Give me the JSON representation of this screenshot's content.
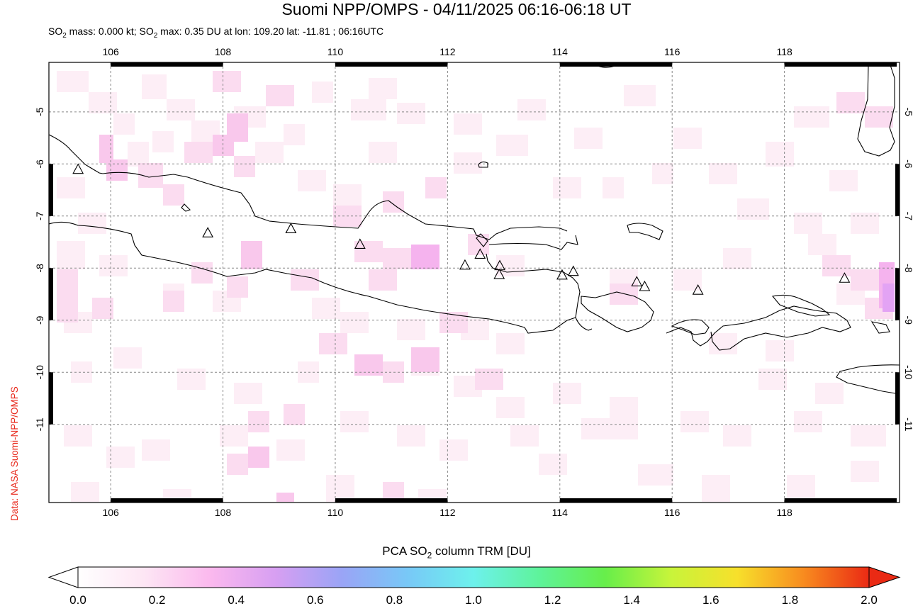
{
  "title": "Suomi NPP/OMPS - 04/11/2025 06:16-06:18 UT",
  "subtitle": {
    "prefix": "SO",
    "sub1": "2",
    "mid": " mass: 0.000 kt; SO",
    "sub2": "2",
    "suffix": " max: 0.35 DU at lon: 109.20 lat: -11.81 ; 06:16UTC"
  },
  "credit": "Data: NASA Suomi-NPP/OMPS",
  "map": {
    "lon_range": [
      104.9,
      120.05
    ],
    "lat_range": [
      -12.5,
      -4.05
    ],
    "lon_ticks": [
      "106",
      "108",
      "110",
      "112",
      "114",
      "116",
      "118"
    ],
    "lat_ticks": [
      "-5",
      "-6",
      "-7",
      "-8",
      "-9",
      "-10",
      "-11"
    ],
    "grid": "dashed",
    "volcanoes": [
      {
        "lon": 105.42,
        "lat": -6.1
      },
      {
        "lon": 107.73,
        "lat": -7.32
      },
      {
        "lon": 109.21,
        "lat": -7.24
      },
      {
        "lon": 110.44,
        "lat": -7.54
      },
      {
        "lon": 112.31,
        "lat": -7.94
      },
      {
        "lon": 112.58,
        "lat": -7.73
      },
      {
        "lon": 112.93,
        "lat": -7.95
      },
      {
        "lon": 112.92,
        "lat": -8.12
      },
      {
        "lon": 114.04,
        "lat": -8.13
      },
      {
        "lon": 114.24,
        "lat": -8.06
      },
      {
        "lon": 115.37,
        "lat": -8.26
      },
      {
        "lon": 115.51,
        "lat": -8.35
      },
      {
        "lon": 116.46,
        "lat": -8.42
      },
      {
        "lon": 119.07,
        "lat": -8.19
      }
    ]
  },
  "colorbar": {
    "title_prefix": "PCA SO",
    "title_sub": "2",
    "title_suffix": " column TRM [DU]",
    "min": 0.0,
    "max": 2.0,
    "tick_labels": [
      "0.0",
      "0.2",
      "0.4",
      "0.6",
      "0.8",
      "1.0",
      "1.2",
      "1.4",
      "1.6",
      "1.8",
      "2.0"
    ],
    "colors": [
      "#ffffff",
      "#fde6f4",
      "#fbb9ee",
      "#d79ff2",
      "#9aa4f6",
      "#78c8f7",
      "#6df1ec",
      "#5ef39a",
      "#67ee4a",
      "#c8f43a",
      "#f7e02b",
      "#f88c1f",
      "#ea2a14"
    ]
  }
}
